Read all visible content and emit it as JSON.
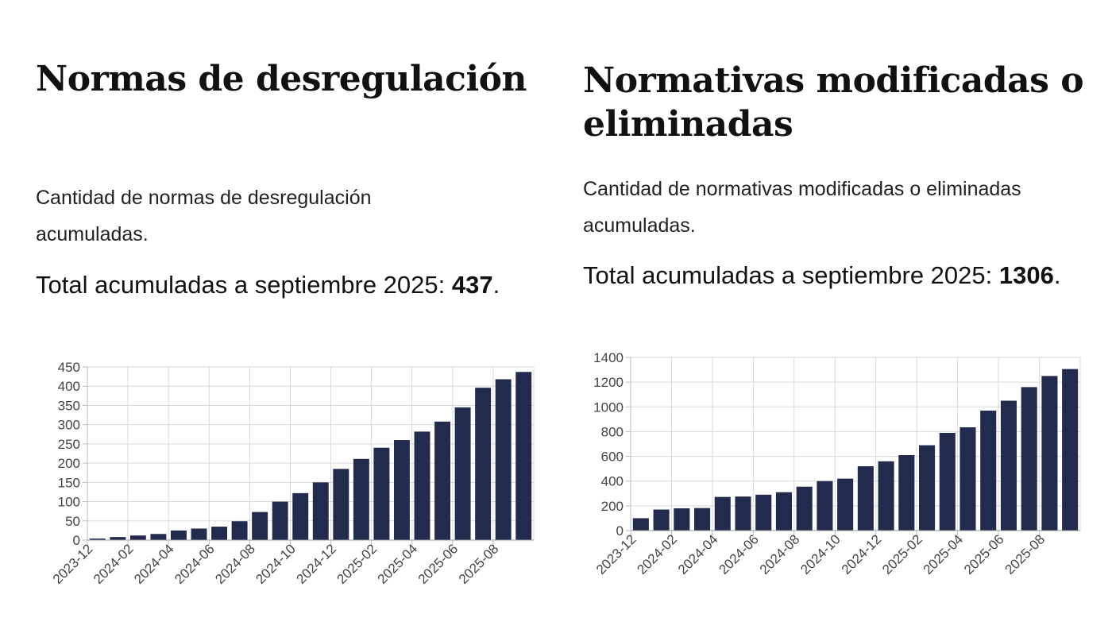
{
  "charts": [
    {
      "title": "Normas de desregulación",
      "subtitle": "Cantidad de normas de desregulación acumuladas.",
      "total_prefix": "Total acumuladas a septiembre 2025:",
      "total_value": "437",
      "total_suffix": ".",
      "bar_color": "#222b4d"
    },
    {
      "title": "Normativas modificadas o eliminadas",
      "subtitle": "Cantidad de normativas modificadas o eliminadas acumuladas.",
      "total_prefix": "Total acumuladas a septiembre 2025:",
      "total_value": "1306",
      "total_suffix": ".",
      "bar_color": "#222b4d"
    }
  ],
  "chart_data": [
    {
      "type": "bar",
      "categories": [
        "2023-12",
        "2024-01",
        "2024-02",
        "2024-03",
        "2024-04",
        "2024-05",
        "2024-06",
        "2024-07",
        "2024-08",
        "2024-09",
        "2024-10",
        "2024-11",
        "2024-12",
        "2025-01",
        "2025-02",
        "2025-03",
        "2025-04",
        "2025-05",
        "2025-06",
        "2025-07",
        "2025-08",
        "2025-09"
      ],
      "tick_labels": [
        "2023-12",
        "2024-02",
        "2024-04",
        "2024-06",
        "2024-08",
        "2024-10",
        "2024-12",
        "2025-02",
        "2025-04",
        "2025-06",
        "2025-08"
      ],
      "values": [
        4,
        8,
        12,
        16,
        25,
        30,
        35,
        49,
        73,
        100,
        122,
        150,
        185,
        211,
        240,
        260,
        282,
        308,
        345,
        396,
        418,
        437
      ],
      "ylim": [
        0,
        450
      ],
      "yticks": [
        0,
        50,
        100,
        150,
        200,
        250,
        300,
        350,
        400,
        450
      ],
      "grid": true,
      "xlabel": "",
      "ylabel": ""
    },
    {
      "type": "bar",
      "categories": [
        "2023-12",
        "2024-01",
        "2024-02",
        "2024-03",
        "2024-04",
        "2024-05",
        "2024-06",
        "2024-07",
        "2024-08",
        "2024-09",
        "2024-10",
        "2024-11",
        "2024-12",
        "2025-01",
        "2025-02",
        "2025-03",
        "2025-04",
        "2025-05",
        "2025-06",
        "2025-07",
        "2025-08",
        "2025-09"
      ],
      "tick_labels": [
        "2023-12",
        "2024-02",
        "2024-04",
        "2024-06",
        "2024-08",
        "2024-10",
        "2024-12",
        "2025-02",
        "2025-04",
        "2025-06",
        "2025-08"
      ],
      "values": [
        100,
        170,
        180,
        182,
        272,
        275,
        290,
        310,
        355,
        400,
        420,
        520,
        560,
        610,
        690,
        790,
        835,
        970,
        1050,
        1160,
        1250,
        1306
      ],
      "ylim": [
        0,
        1400
      ],
      "yticks": [
        0,
        200,
        400,
        600,
        800,
        1000,
        1200,
        1400
      ],
      "grid": true,
      "xlabel": "",
      "ylabel": ""
    }
  ]
}
